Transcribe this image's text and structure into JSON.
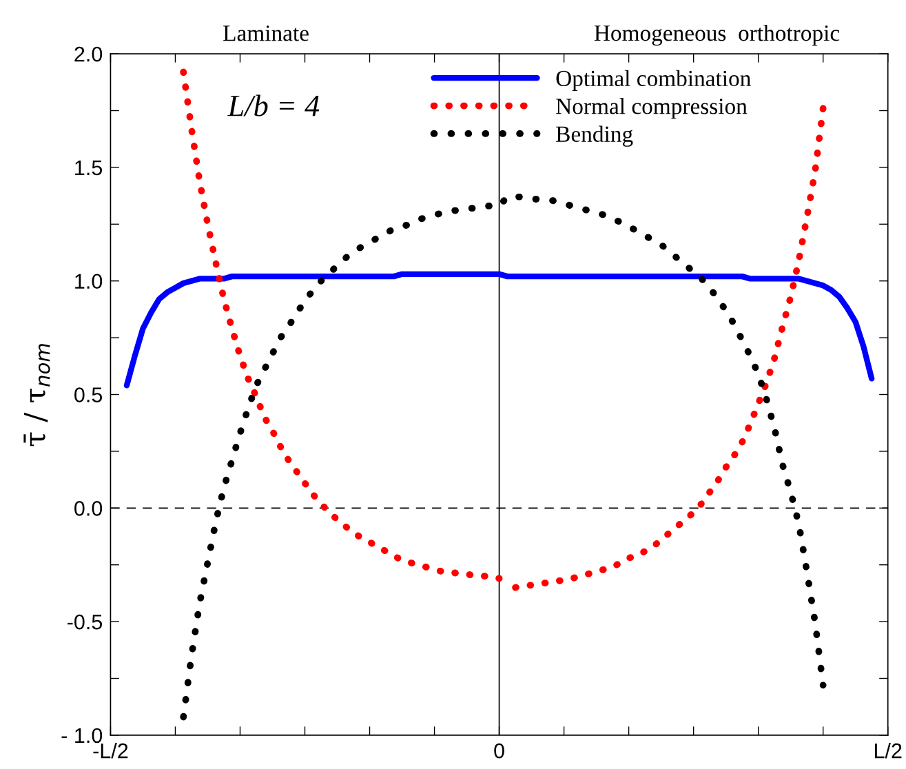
{
  "chart_data": {
    "type": "line",
    "ylabel": "τ̄ / τ$_{nom}$",
    "annotations": [
      "Laminate",
      "Homogeneous  orthotropic",
      "L/b = 4"
    ],
    "categories": [
      "-L/2",
      null,
      null,
      null,
      null,
      null,
      null,
      null,
      null,
      null,
      null,
      null,
      null,
      null,
      null,
      null,
      null,
      null,
      null,
      null,
      null,
      null,
      null,
      null,
      null,
      null,
      null,
      null,
      null,
      null,
      null,
      null,
      null,
      null,
      null,
      null,
      null,
      null,
      null,
      null,
      null,
      null,
      null,
      null,
      null,
      null,
      null,
      null,
      "0",
      null,
      null,
      null,
      null,
      null,
      null,
      null,
      null,
      null,
      null,
      null,
      null,
      null,
      null,
      null,
      null,
      null,
      null,
      null,
      null,
      null,
      null,
      null,
      null,
      null,
      null,
      null,
      null,
      null,
      null,
      null,
      null,
      null,
      null,
      null,
      null,
      null,
      null,
      null,
      null,
      null,
      null,
      null,
      null,
      null,
      null,
      null,
      "L/2"
    ],
    "series": [
      {
        "name": "Optimal combination",
        "color": "#0000ff",
        "line_style": "solid",
        "values": [
          null,
          null,
          0.54,
          0.67,
          0.79,
          0.86,
          0.92,
          0.95,
          0.97,
          0.99,
          1.0,
          1.01,
          1.01,
          1.01,
          1.01,
          1.02,
          1.02,
          1.02,
          1.02,
          1.02,
          1.02,
          1.02,
          1.02,
          1.02,
          1.02,
          1.02,
          1.02,
          1.02,
          1.02,
          1.02,
          1.02,
          1.02,
          1.02,
          1.02,
          1.02,
          1.02,
          1.03,
          1.03,
          1.03,
          1.03,
          1.03,
          1.03,
          1.03,
          1.03,
          1.03,
          1.03,
          1.03,
          1.03,
          1.03,
          1.02,
          1.02,
          1.02,
          1.02,
          1.02,
          1.02,
          1.02,
          1.02,
          1.02,
          1.02,
          1.02,
          1.02,
          1.02,
          1.02,
          1.02,
          1.02,
          1.02,
          1.02,
          1.02,
          1.02,
          1.02,
          1.02,
          1.02,
          1.02,
          1.02,
          1.02,
          1.02,
          1.02,
          1.02,
          1.02,
          1.01,
          1.01,
          1.01,
          1.01,
          1.01,
          1.01,
          1.01,
          1.0,
          0.99,
          0.98,
          0.96,
          0.93,
          0.88,
          0.82,
          0.71,
          0.57,
          null,
          null
        ]
      },
      {
        "name": "Normal compression",
        "color": "#ff0000",
        "line_style": "dotted",
        "values": [
          null,
          null,
          null,
          null,
          null,
          null,
          null,
          null,
          null,
          1.92,
          1.67,
          1.44,
          1.25,
          1.08,
          0.92,
          0.79,
          0.67,
          0.57,
          0.49,
          0.4,
          0.34,
          0.27,
          0.21,
          0.16,
          0.11,
          0.06,
          0.02,
          -0.02,
          -0.05,
          -0.08,
          -0.11,
          -0.13,
          -0.15,
          -0.17,
          -0.19,
          -0.21,
          -0.23,
          -0.24,
          -0.25,
          -0.26,
          -0.27,
          -0.28,
          -0.28,
          -0.29,
          -0.29,
          -0.3,
          -0.3,
          -0.3,
          -0.31,
          null,
          -0.35,
          -0.34,
          -0.34,
          -0.33,
          -0.33,
          -0.32,
          -0.32,
          -0.31,
          -0.3,
          -0.29,
          -0.28,
          -0.27,
          -0.26,
          -0.24,
          -0.22,
          -0.21,
          -0.19,
          -0.17,
          -0.14,
          -0.11,
          -0.08,
          -0.05,
          -0.02,
          0.02,
          0.07,
          0.12,
          0.18,
          0.23,
          0.29,
          0.37,
          0.46,
          0.55,
          0.66,
          0.8,
          0.93,
          1.09,
          1.28,
          1.48,
          1.76,
          null,
          null,
          null,
          null,
          null,
          null,
          null,
          null
        ]
      },
      {
        "name": "Bending",
        "color": "#000000",
        "line_style": "dotted",
        "values": [
          null,
          null,
          null,
          null,
          null,
          null,
          null,
          null,
          null,
          -0.92,
          -0.65,
          -0.42,
          -0.24,
          -0.06,
          0.09,
          0.21,
          0.33,
          0.44,
          0.54,
          0.61,
          0.68,
          0.75,
          0.8,
          0.86,
          0.91,
          0.96,
          1.0,
          1.03,
          1.07,
          1.1,
          1.13,
          1.15,
          1.17,
          1.19,
          1.21,
          1.23,
          1.24,
          1.25,
          1.27,
          1.28,
          1.29,
          1.3,
          1.31,
          1.31,
          1.32,
          1.32,
          1.33,
          1.33,
          1.33,
          1.37,
          1.37,
          1.37,
          1.36,
          1.36,
          1.36,
          1.35,
          1.34,
          1.33,
          1.32,
          1.31,
          1.3,
          1.29,
          1.27,
          1.26,
          1.24,
          1.22,
          1.2,
          1.18,
          1.16,
          1.13,
          1.1,
          1.07,
          1.04,
          1.01,
          0.97,
          0.92,
          0.87,
          0.81,
          0.74,
          0.67,
          0.59,
          0.48,
          0.35,
          0.19,
          0.07,
          -0.07,
          -0.28,
          -0.5,
          -0.78,
          null,
          null,
          null,
          null,
          null,
          null,
          null,
          null
        ]
      }
    ],
    "ylim": [
      -1.0,
      2.0
    ],
    "yticks": [
      {
        "value": -1.0,
        "label": "- 1.0"
      },
      {
        "value": -0.75,
        "label": null
      },
      {
        "value": -0.5,
        "label": "-0.5"
      },
      {
        "value": -0.25,
        "label": null
      },
      {
        "value": 0.0,
        "label": "0.0"
      },
      {
        "value": 0.25,
        "label": null
      },
      {
        "value": 0.5,
        "label": "0.5"
      },
      {
        "value": 0.75,
        "label": null
      },
      {
        "value": 1.0,
        "label": "1.0"
      },
      {
        "value": 1.25,
        "label": null
      },
      {
        "value": 1.5,
        "label": "1.5"
      },
      {
        "value": 1.75,
        "label": null
      },
      {
        "value": 2.0,
        "label": "2.0"
      }
    ],
    "ref_lines": [
      {
        "axis": "y",
        "value": 0,
        "color": "#000000",
        "line_style": "dashed"
      },
      {
        "axis": "x",
        "value": "0",
        "color": "#000000",
        "line_style": "solid"
      }
    ],
    "grid": false,
    "legend": "top",
    "marker": "none"
  }
}
